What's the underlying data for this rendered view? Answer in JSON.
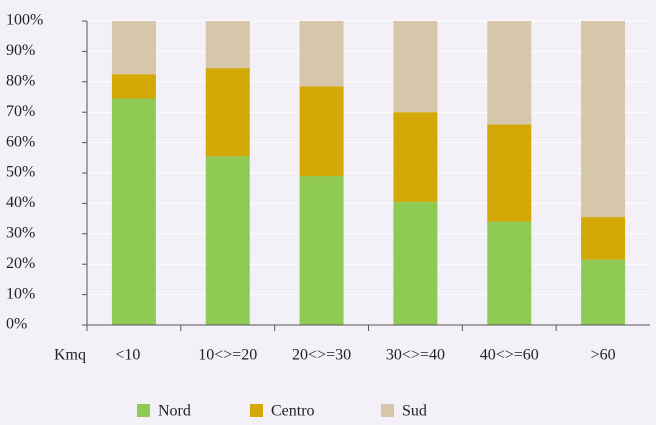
{
  "chart_data": {
    "type": "stacked_bar",
    "x_label": "Kmq",
    "categories": [
      "<10",
      "10<>=20",
      "20<>=30",
      "30<>=40",
      "40<>=60",
      ">60"
    ],
    "series": [
      {
        "name": "Nord",
        "color": "#8fca55",
        "values": [
          74.5,
          55.5,
          49,
          40.5,
          34,
          21.5
        ]
      },
      {
        "name": "Centro",
        "color": "#d4a806",
        "values": [
          8,
          29,
          29.5,
          29.5,
          32,
          14
        ]
      },
      {
        "name": "Sud",
        "color": "#d6c7ab",
        "values": [
          17.5,
          15.5,
          21.5,
          30,
          34,
          64.5
        ]
      }
    ],
    "ylim": [
      0,
      100
    ],
    "yticks": [
      {
        "value": 0,
        "label": "0%"
      },
      {
        "value": 10,
        "label": "10%"
      },
      {
        "value": 20,
        "label": "20%"
      },
      {
        "value": 30,
        "label": "30%"
      },
      {
        "value": 40,
        "label": "40%"
      },
      {
        "value": 50,
        "label": "50%"
      },
      {
        "value": 60,
        "label": "60%"
      },
      {
        "value": 70,
        "label": "70%"
      },
      {
        "value": 80,
        "label": "80%"
      },
      {
        "value": 90,
        "label": "90%"
      },
      {
        "value": 100,
        "label": "100%"
      }
    ],
    "grid": true,
    "legend": "bottom"
  }
}
